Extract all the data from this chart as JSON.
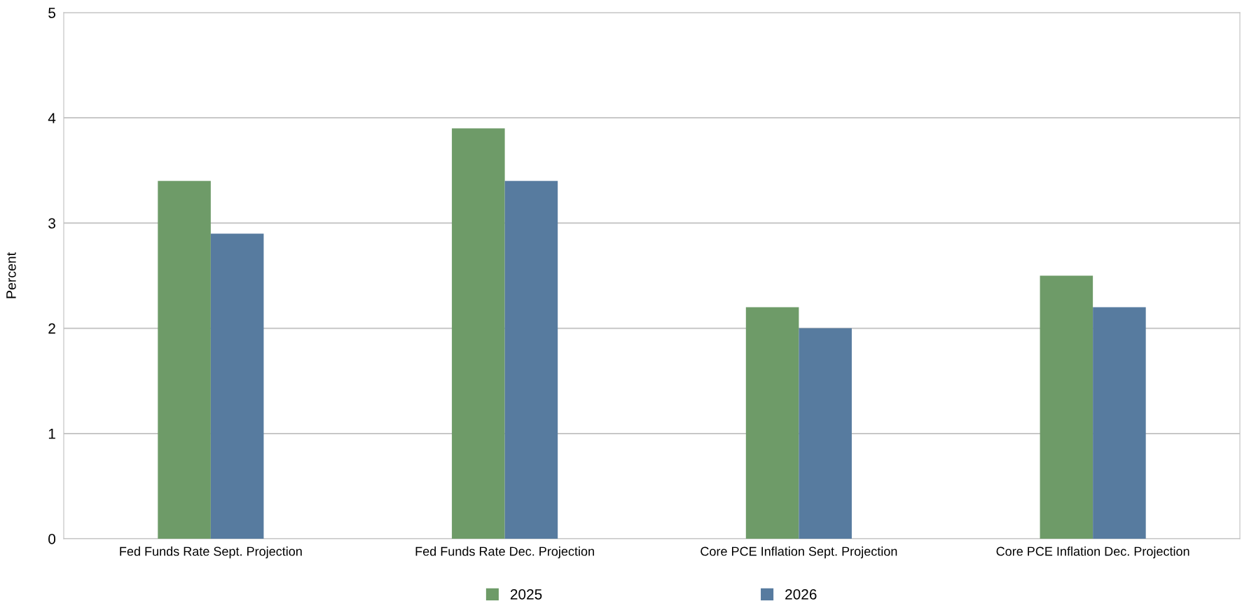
{
  "chart_data": {
    "type": "bar",
    "ylabel": "Percent",
    "categories": [
      "Fed Funds Rate Sept. Projection",
      "Fed Funds Rate Dec. Projection",
      "Core PCE Inflation Sept. Projection",
      "Core PCE Inflation Dec. Projection"
    ],
    "series": [
      {
        "name": "2025",
        "color": "#6e9b68",
        "values": [
          3.4,
          3.9,
          2.2,
          2.5
        ]
      },
      {
        "name": "2026",
        "color": "#577b9f",
        "values": [
          2.9,
          3.4,
          2.0,
          2.2
        ]
      }
    ],
    "ylim": [
      0,
      5
    ],
    "yticks": [
      0,
      1,
      2,
      3,
      4,
      5
    ],
    "grid": "y",
    "legend": "bottom"
  }
}
